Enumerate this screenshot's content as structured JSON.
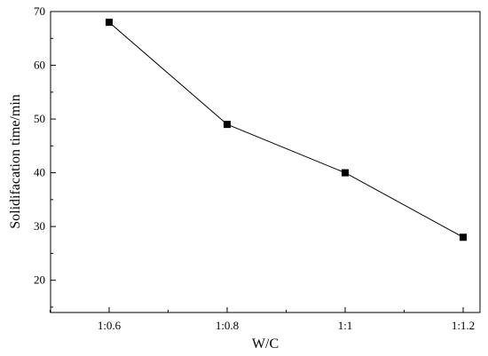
{
  "chart_data": {
    "type": "line",
    "title": "",
    "xlabel": "W/C",
    "ylabel": "Solidifacation time/min",
    "categories": [
      "1:0.6",
      "1:0.8",
      "1:1",
      "1:1.2"
    ],
    "series": [
      {
        "values": [
          68,
          49,
          40,
          28
        ]
      }
    ],
    "ylim": [
      14,
      70
    ],
    "yticks": [
      "20",
      "30",
      "40",
      "50",
      "60",
      "70"
    ],
    "yticks_values": [
      20,
      30,
      40,
      50,
      60,
      70
    ],
    "marker": "square",
    "line_color": "#000000",
    "grid": false,
    "legend": "none"
  }
}
